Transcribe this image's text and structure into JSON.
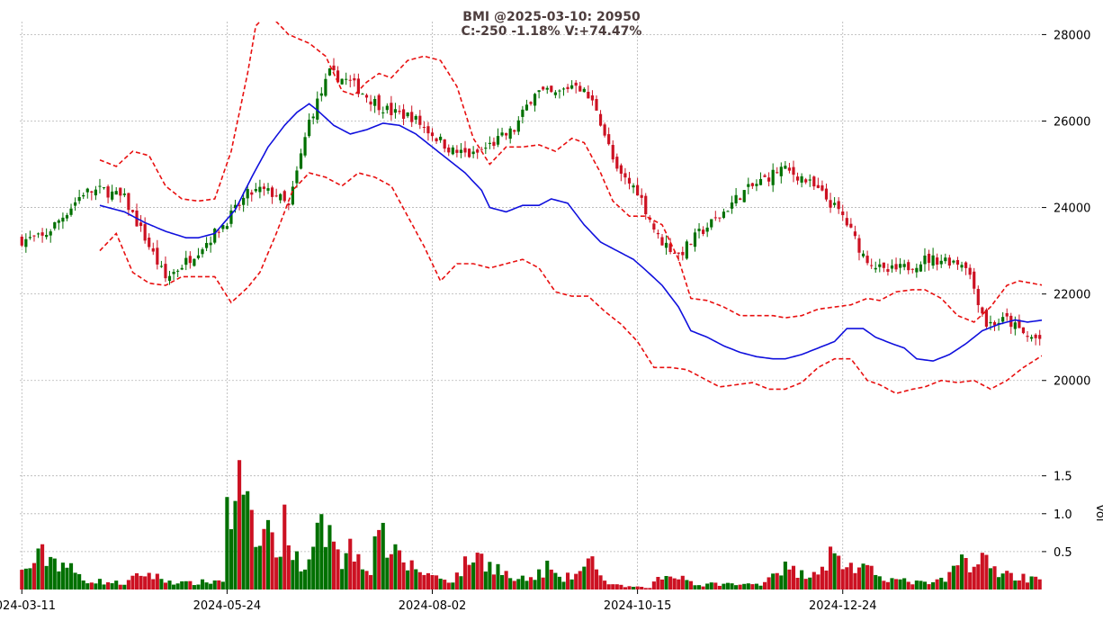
{
  "title": {
    "line1": "BMI @2025-03-10: 20950",
    "line2": "C:-250 -1.18% V:+74.47%"
  },
  "colors": {
    "up": "#007000",
    "down": "#cc1122",
    "ma": "#1010dd",
    "bands": "#e81010",
    "grid": "#b4b4b4"
  },
  "chart_data": [
    {
      "type": "candlestick",
      "x_ticks": [
        "2024-03-11",
        "2024-05-24",
        "2024-08-02",
        "2024-10-15",
        "2024-12-24"
      ],
      "x_tick_index": [
        0,
        50,
        100,
        150,
        200
      ],
      "y_ticks": [
        20000,
        22000,
        24000,
        26000,
        28000
      ],
      "ylim": [
        18600,
        28300
      ],
      "grid": true,
      "legend": "none",
      "n_bars": 249,
      "close_anchors": [
        [
          0,
          23250
        ],
        [
          5,
          23300
        ],
        [
          10,
          23800
        ],
        [
          15,
          24350
        ],
        [
          20,
          24400
        ],
        [
          25,
          24200
        ],
        [
          30,
          23300
        ],
        [
          35,
          22350
        ],
        [
          40,
          22750
        ],
        [
          45,
          23200
        ],
        [
          50,
          23700
        ],
        [
          55,
          24300
        ],
        [
          58,
          24400
        ],
        [
          62,
          24300
        ],
        [
          65,
          24000
        ],
        [
          70,
          26000
        ],
        [
          75,
          27100
        ],
        [
          80,
          26900
        ],
        [
          85,
          26500
        ],
        [
          90,
          26200
        ],
        [
          95,
          26100
        ],
        [
          100,
          25700
        ],
        [
          105,
          25300
        ],
        [
          110,
          25200
        ],
        [
          115,
          25500
        ],
        [
          120,
          25800
        ],
        [
          125,
          26700
        ],
        [
          130,
          26600
        ],
        [
          135,
          26900
        ],
        [
          140,
          26300
        ],
        [
          145,
          24800
        ],
        [
          150,
          24400
        ],
        [
          155,
          23300
        ],
        [
          160,
          22900
        ],
        [
          165,
          23400
        ],
        [
          170,
          23800
        ],
        [
          175,
          24300
        ],
        [
          180,
          24600
        ],
        [
          185,
          24900
        ],
        [
          190,
          24700
        ],
        [
          195,
          24300
        ],
        [
          200,
          23800
        ],
        [
          205,
          22900
        ],
        [
          210,
          22500
        ],
        [
          215,
          22600
        ],
        [
          220,
          22800
        ],
        [
          225,
          22800
        ],
        [
          230,
          22700
        ],
        [
          235,
          21300
        ],
        [
          240,
          21400
        ],
        [
          245,
          21000
        ],
        [
          249,
          20950
        ]
      ],
      "ma_anchors": [
        [
          19,
          24050
        ],
        [
          25,
          23900
        ],
        [
          30,
          23650
        ],
        [
          35,
          23450
        ],
        [
          40,
          23300
        ],
        [
          43,
          23300
        ],
        [
          47,
          23400
        ],
        [
          52,
          23950
        ],
        [
          56,
          24700
        ],
        [
          60,
          25400
        ],
        [
          64,
          25900
        ],
        [
          67,
          26200
        ],
        [
          70,
          26400
        ],
        [
          72,
          26250
        ],
        [
          76,
          25900
        ],
        [
          80,
          25700
        ],
        [
          84,
          25800
        ],
        [
          88,
          25950
        ],
        [
          92,
          25900
        ],
        [
          96,
          25700
        ],
        [
          100,
          25400
        ],
        [
          104,
          25100
        ],
        [
          108,
          24800
        ],
        [
          112,
          24400
        ],
        [
          114,
          24000
        ],
        [
          118,
          23900
        ],
        [
          122,
          24050
        ],
        [
          126,
          24050
        ],
        [
          129,
          24200
        ],
        [
          133,
          24100
        ],
        [
          137,
          23600
        ],
        [
          141,
          23200
        ],
        [
          145,
          23000
        ],
        [
          149,
          22800
        ],
        [
          152,
          22550
        ],
        [
          156,
          22200
        ],
        [
          160,
          21700
        ],
        [
          163,
          21150
        ],
        [
          167,
          21000
        ],
        [
          171,
          20800
        ],
        [
          175,
          20650
        ],
        [
          179,
          20550
        ],
        [
          183,
          20500
        ],
        [
          186,
          20500
        ],
        [
          190,
          20600
        ],
        [
          194,
          20750
        ],
        [
          198,
          20900
        ],
        [
          201,
          21200
        ],
        [
          205,
          21200
        ],
        [
          208,
          21000
        ],
        [
          212,
          20850
        ],
        [
          215,
          20750
        ],
        [
          218,
          20500
        ],
        [
          222,
          20450
        ],
        [
          226,
          20600
        ],
        [
          230,
          20850
        ],
        [
          234,
          21150
        ],
        [
          238,
          21300
        ],
        [
          242,
          21400
        ],
        [
          245,
          21350
        ],
        [
          249,
          21400
        ]
      ],
      "upper_anchors": [
        [
          19,
          25100
        ],
        [
          23,
          24950
        ],
        [
          27,
          25300
        ],
        [
          31,
          25200
        ],
        [
          35,
          24500
        ],
        [
          39,
          24200
        ],
        [
          43,
          24150
        ],
        [
          47,
          24200
        ],
        [
          51,
          25300
        ],
        [
          55,
          27100
        ],
        [
          57,
          28200
        ],
        [
          60,
          28500
        ],
        [
          65,
          28000
        ],
        [
          70,
          27800
        ],
        [
          74,
          27500
        ],
        [
          78,
          26700
        ],
        [
          81,
          26600
        ],
        [
          84,
          26900
        ],
        [
          87,
          27100
        ],
        [
          90,
          27000
        ],
        [
          94,
          27400
        ],
        [
          98,
          27500
        ],
        [
          102,
          27400
        ],
        [
          106,
          26800
        ],
        [
          110,
          25600
        ],
        [
          114,
          25000
        ],
        [
          118,
          25400
        ],
        [
          122,
          25400
        ],
        [
          126,
          25450
        ],
        [
          130,
          25300
        ],
        [
          134,
          25600
        ],
        [
          137,
          25500
        ],
        [
          141,
          24800
        ],
        [
          144,
          24150
        ],
        [
          148,
          23800
        ],
        [
          152,
          23800
        ],
        [
          156,
          23600
        ],
        [
          160,
          22800
        ],
        [
          163,
          21900
        ],
        [
          167,
          21850
        ],
        [
          171,
          21700
        ],
        [
          175,
          21500
        ],
        [
          179,
          21500
        ],
        [
          183,
          21500
        ],
        [
          186,
          21450
        ],
        [
          190,
          21500
        ],
        [
          194,
          21650
        ],
        [
          198,
          21700
        ],
        [
          202,
          21750
        ],
        [
          206,
          21900
        ],
        [
          209,
          21850
        ],
        [
          213,
          22050
        ],
        [
          217,
          22100
        ],
        [
          220,
          22100
        ],
        [
          224,
          21900
        ],
        [
          228,
          21500
        ],
        [
          232,
          21350
        ],
        [
          236,
          21700
        ],
        [
          240,
          22200
        ],
        [
          243,
          22300
        ],
        [
          246,
          22250
        ],
        [
          249,
          22200
        ]
      ],
      "lower_anchors": [
        [
          19,
          23000
        ],
        [
          23,
          23400
        ],
        [
          27,
          22500
        ],
        [
          31,
          22250
        ],
        [
          35,
          22200
        ],
        [
          39,
          22400
        ],
        [
          43,
          22400
        ],
        [
          47,
          22400
        ],
        [
          51,
          21800
        ],
        [
          55,
          22150
        ],
        [
          58,
          22500
        ],
        [
          62,
          23400
        ],
        [
          66,
          24400
        ],
        [
          70,
          24800
        ],
        [
          74,
          24700
        ],
        [
          78,
          24500
        ],
        [
          82,
          24800
        ],
        [
          86,
          24700
        ],
        [
          90,
          24500
        ],
        [
          94,
          23800
        ],
        [
          98,
          23100
        ],
        [
          102,
          22300
        ],
        [
          106,
          22700
        ],
        [
          110,
          22700
        ],
        [
          114,
          22600
        ],
        [
          118,
          22700
        ],
        [
          122,
          22800
        ],
        [
          126,
          22600
        ],
        [
          130,
          22050
        ],
        [
          134,
          21950
        ],
        [
          138,
          21950
        ],
        [
          142,
          21600
        ],
        [
          146,
          21300
        ],
        [
          150,
          20900
        ],
        [
          154,
          20300
        ],
        [
          158,
          20300
        ],
        [
          162,
          20250
        ],
        [
          166,
          20050
        ],
        [
          170,
          19850
        ],
        [
          174,
          19900
        ],
        [
          178,
          19950
        ],
        [
          182,
          19800
        ],
        [
          186,
          19800
        ],
        [
          190,
          19950
        ],
        [
          194,
          20300
        ],
        [
          198,
          20500
        ],
        [
          202,
          20500
        ],
        [
          206,
          20000
        ],
        [
          209,
          19900
        ],
        [
          213,
          19700
        ],
        [
          217,
          19800
        ],
        [
          220,
          19850
        ],
        [
          224,
          20000
        ],
        [
          228,
          19950
        ],
        [
          232,
          20000
        ],
        [
          236,
          19800
        ],
        [
          240,
          20000
        ],
        [
          244,
          20300
        ],
        [
          249,
          20600
        ]
      ],
      "volume": {
        "ylabel": "Vol",
        "y_ticks": [
          0.5,
          1.0,
          1.5
        ],
        "ylim": [
          0,
          1.9
        ],
        "anchors": [
          [
            0,
            0.22
          ],
          [
            5,
            0.45
          ],
          [
            10,
            0.35
          ],
          [
            15,
            0.13
          ],
          [
            20,
            0.1
          ],
          [
            25,
            0.08
          ],
          [
            30,
            0.22
          ],
          [
            35,
            0.12
          ],
          [
            40,
            0.08
          ],
          [
            45,
            0.1
          ],
          [
            49,
            0.12
          ],
          [
            50,
            1.55
          ],
          [
            51,
            0.62
          ],
          [
            52,
            1.33
          ],
          [
            53,
            1.45
          ],
          [
            54,
            0.98
          ],
          [
            56,
            0.9
          ],
          [
            58,
            0.52
          ],
          [
            60,
            1.0
          ],
          [
            61,
            0.6
          ],
          [
            62,
            0.5
          ],
          [
            63,
            0.7
          ],
          [
            65,
            0.95
          ],
          [
            66,
            0.45
          ],
          [
            70,
            0.3
          ],
          [
            72,
            0.7
          ],
          [
            74,
            0.8
          ],
          [
            75,
            1.05
          ],
          [
            78,
            0.4
          ],
          [
            80,
            0.55
          ],
          [
            85,
            0.3
          ],
          [
            88,
            1.1
          ],
          [
            89,
            0.5
          ],
          [
            92,
            0.4
          ],
          [
            95,
            0.3
          ],
          [
            100,
            0.18
          ],
          [
            105,
            0.12
          ],
          [
            110,
            0.45
          ],
          [
            115,
            0.32
          ],
          [
            120,
            0.12
          ],
          [
            125,
            0.15
          ],
          [
            128,
            0.3
          ],
          [
            131,
            0.12
          ],
          [
            135,
            0.2
          ],
          [
            140,
            0.38
          ],
          [
            142,
            0.1
          ],
          [
            145,
            0.05
          ],
          [
            150,
            0.03
          ],
          [
            153,
            0.02
          ],
          [
            155,
            0.15
          ],
          [
            160,
            0.2
          ],
          [
            165,
            0.05
          ],
          [
            170,
            0.08
          ],
          [
            175,
            0.06
          ],
          [
            180,
            0.08
          ],
          [
            183,
            0.22
          ],
          [
            185,
            0.3
          ],
          [
            190,
            0.2
          ],
          [
            195,
            0.3
          ],
          [
            197,
            0.45
          ],
          [
            200,
            0.35
          ],
          [
            205,
            0.25
          ],
          [
            209,
            0.2
          ],
          [
            213,
            0.12
          ],
          [
            217,
            0.1
          ],
          [
            220,
            0.08
          ],
          [
            225,
            0.12
          ],
          [
            230,
            0.45
          ],
          [
            232,
            0.3
          ],
          [
            234,
            0.4
          ],
          [
            236,
            0.3
          ],
          [
            240,
            0.2
          ],
          [
            245,
            0.15
          ],
          [
            249,
            0.2
          ]
        ]
      }
    }
  ]
}
